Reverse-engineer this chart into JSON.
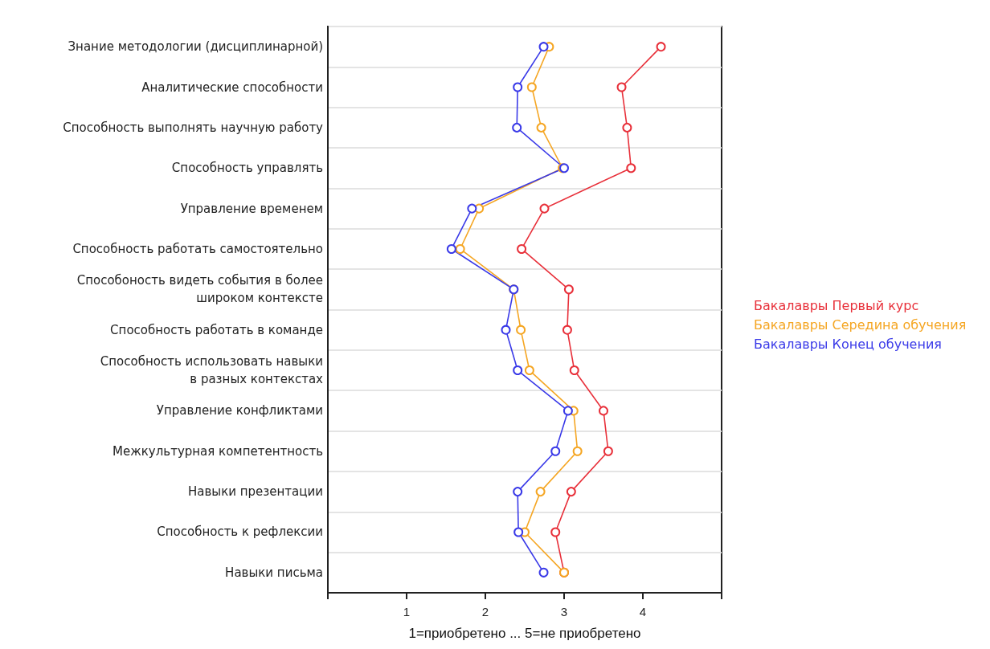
{
  "chart_data": {
    "type": "line",
    "orientation": "horizontal",
    "xlabel": "1=приобретено ... 5=не приобретено",
    "categories": [
      "Знание методологии (дисциплинарной)",
      "Аналитические способности",
      "Способность выполнять научную работу",
      "Способность управлять",
      "Управление временем",
      "Способность работать самостоятельно",
      "Способоность видеть события в более\nшироком контексте",
      "Способность работать в команде",
      "Способность использовать навыки\nв разных контекстах",
      "Управление конфликтами",
      "Межкультурная компетентность",
      "Навыки презентации",
      "Способность к рефлексии",
      "Навыки письма"
    ],
    "series": [
      {
        "name": "Бакалавры Первый курс",
        "color": "#e8303a",
        "values": [
          4.23,
          3.73,
          3.8,
          3.85,
          2.75,
          2.46,
          3.06,
          3.04,
          3.13,
          3.5,
          3.56,
          3.09,
          2.89,
          3.0
        ]
      },
      {
        "name": "Бакалавры Середина обучения",
        "color": "#f5a623",
        "values": [
          2.81,
          2.59,
          2.71,
          2.98,
          1.92,
          1.68,
          2.36,
          2.45,
          2.56,
          3.12,
          3.17,
          2.7,
          2.5,
          3.0
        ]
      },
      {
        "name": "Бакалавры Конец обучения",
        "color": "#3a3ae8",
        "values": [
          2.74,
          2.41,
          2.4,
          3.0,
          1.83,
          1.57,
          2.36,
          2.26,
          2.41,
          3.05,
          2.89,
          2.41,
          2.42,
          2.74
        ]
      }
    ],
    "xlim": [
      0,
      5
    ],
    "xticks": [
      {
        "value": 0,
        "label": null
      },
      1,
      2,
      3,
      4,
      {
        "value": 5,
        "label": null
      }
    ],
    "grid": "y",
    "legend": "right",
    "marker": "circle",
    "line_style": "solid"
  }
}
